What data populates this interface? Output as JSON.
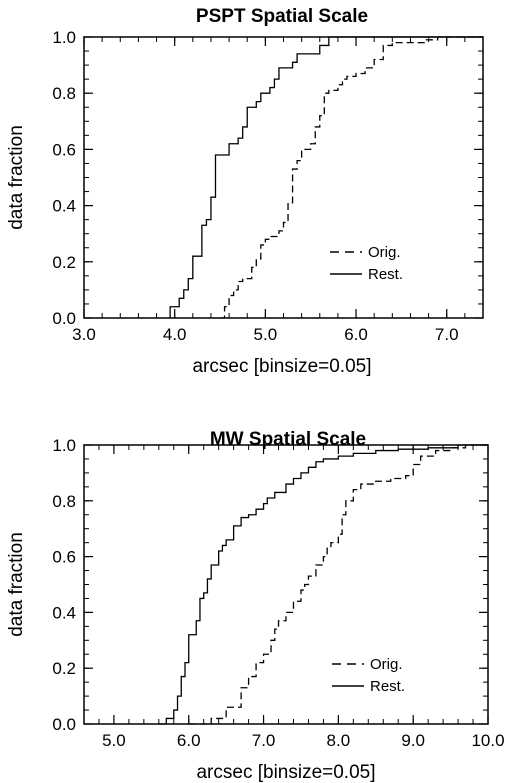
{
  "chart_data": [
    {
      "type": "line",
      "title": "PSPT Spatial Scale",
      "xlabel": "arcsec    [binsize=0.05]",
      "ylabel": "data fraction",
      "xlim": [
        3.0,
        7.4
      ],
      "ylim": [
        0.0,
        1.0
      ],
      "xticks": [
        "3.0",
        "4.0",
        "5.0",
        "6.0",
        "7.0"
      ],
      "yticks": [
        "0.0",
        "0.2",
        "0.4",
        "0.6",
        "0.8",
        "1.0"
      ],
      "legend": "center-right",
      "series": [
        {
          "name": "Orig.",
          "style": "dashed",
          "points": [
            [
              4.5,
              0.0
            ],
            [
              4.55,
              0.04
            ],
            [
              4.6,
              0.08
            ],
            [
              4.65,
              0.1
            ],
            [
              4.7,
              0.13
            ],
            [
              4.75,
              0.14
            ],
            [
              4.85,
              0.18
            ],
            [
              4.9,
              0.21
            ],
            [
              4.95,
              0.26
            ],
            [
              5.0,
              0.28
            ],
            [
              5.05,
              0.29
            ],
            [
              5.15,
              0.31
            ],
            [
              5.2,
              0.34
            ],
            [
              5.25,
              0.41
            ],
            [
              5.3,
              0.53
            ],
            [
              5.35,
              0.56
            ],
            [
              5.4,
              0.6
            ],
            [
              5.5,
              0.62
            ],
            [
              5.55,
              0.68
            ],
            [
              5.6,
              0.72
            ],
            [
              5.65,
              0.8
            ],
            [
              5.7,
              0.81
            ],
            [
              5.8,
              0.83
            ],
            [
              5.85,
              0.85
            ],
            [
              5.9,
              0.86
            ],
            [
              6.0,
              0.87
            ],
            [
              6.1,
              0.89
            ],
            [
              6.2,
              0.92
            ],
            [
              6.3,
              0.97
            ],
            [
              6.4,
              0.98
            ],
            [
              6.6,
              0.98
            ],
            [
              6.75,
              0.99
            ],
            [
              6.9,
              1.0
            ],
            [
              7.4,
              1.0
            ]
          ]
        },
        {
          "name": "Rest.",
          "style": "solid",
          "points": [
            [
              3.95,
              0.0
            ],
            [
              3.95,
              0.04
            ],
            [
              4.05,
              0.07
            ],
            [
              4.1,
              0.1
            ],
            [
              4.15,
              0.14
            ],
            [
              4.2,
              0.22
            ],
            [
              4.3,
              0.33
            ],
            [
              4.35,
              0.35
            ],
            [
              4.4,
              0.43
            ],
            [
              4.45,
              0.58
            ],
            [
              4.6,
              0.62
            ],
            [
              4.7,
              0.64
            ],
            [
              4.75,
              0.68
            ],
            [
              4.8,
              0.75
            ],
            [
              4.9,
              0.77
            ],
            [
              4.95,
              0.8
            ],
            [
              5.05,
              0.82
            ],
            [
              5.1,
              0.85
            ],
            [
              5.15,
              0.89
            ],
            [
              5.3,
              0.91
            ],
            [
              5.35,
              0.94
            ],
            [
              5.6,
              0.97
            ],
            [
              5.7,
              1.0
            ],
            [
              7.4,
              1.0
            ]
          ]
        }
      ]
    },
    {
      "type": "line",
      "title": "MW Spatial Scale",
      "xlabel": "arcsec    [binsize=0.05]",
      "ylabel": "data fraction",
      "xlim": [
        4.6,
        10.0
      ],
      "ylim": [
        0.0,
        1.0
      ],
      "xticks": [
        "5.0",
        "6.0",
        "7.0",
        "8.0",
        "9.0",
        "10.0"
      ],
      "yticks": [
        "0.0",
        "0.2",
        "0.4",
        "0.6",
        "0.8",
        "1.0"
      ],
      "legend": "bottom-right",
      "series": [
        {
          "name": "Orig.",
          "style": "dashed",
          "points": [
            [
              6.0,
              0.0
            ],
            [
              6.3,
              0.02
            ],
            [
              6.5,
              0.06
            ],
            [
              6.7,
              0.13
            ],
            [
              6.8,
              0.17
            ],
            [
              6.9,
              0.22
            ],
            [
              7.0,
              0.25
            ],
            [
              7.1,
              0.3
            ],
            [
              7.15,
              0.34
            ],
            [
              7.2,
              0.37
            ],
            [
              7.3,
              0.4
            ],
            [
              7.4,
              0.44
            ],
            [
              7.5,
              0.48
            ],
            [
              7.55,
              0.5
            ],
            [
              7.6,
              0.53
            ],
            [
              7.7,
              0.57
            ],
            [
              7.8,
              0.6
            ],
            [
              7.85,
              0.63
            ],
            [
              7.9,
              0.65
            ],
            [
              8.0,
              0.68
            ],
            [
              8.05,
              0.75
            ],
            [
              8.1,
              0.8
            ],
            [
              8.2,
              0.84
            ],
            [
              8.3,
              0.86
            ],
            [
              8.5,
              0.87
            ],
            [
              8.7,
              0.88
            ],
            [
              8.9,
              0.89
            ],
            [
              9.0,
              0.93
            ],
            [
              9.1,
              0.96
            ],
            [
              9.3,
              0.98
            ],
            [
              9.5,
              0.99
            ],
            [
              9.7,
              1.0
            ],
            [
              10.0,
              1.0
            ]
          ]
        },
        {
          "name": "Rest.",
          "style": "solid",
          "points": [
            [
              5.6,
              0.0
            ],
            [
              5.7,
              0.02
            ],
            [
              5.8,
              0.05
            ],
            [
              5.85,
              0.1
            ],
            [
              5.9,
              0.17
            ],
            [
              5.95,
              0.22
            ],
            [
              6.0,
              0.32
            ],
            [
              6.1,
              0.37
            ],
            [
              6.15,
              0.45
            ],
            [
              6.2,
              0.47
            ],
            [
              6.25,
              0.52
            ],
            [
              6.3,
              0.57
            ],
            [
              6.4,
              0.62
            ],
            [
              6.45,
              0.64
            ],
            [
              6.5,
              0.66
            ],
            [
              6.6,
              0.71
            ],
            [
              6.7,
              0.74
            ],
            [
              6.8,
              0.75
            ],
            [
              6.9,
              0.77
            ],
            [
              7.0,
              0.79
            ],
            [
              7.05,
              0.81
            ],
            [
              7.15,
              0.83
            ],
            [
              7.3,
              0.86
            ],
            [
              7.4,
              0.88
            ],
            [
              7.5,
              0.9
            ],
            [
              7.6,
              0.92
            ],
            [
              7.7,
              0.94
            ],
            [
              7.8,
              0.95
            ],
            [
              8.0,
              0.96
            ],
            [
              8.2,
              0.97
            ],
            [
              8.5,
              0.98
            ],
            [
              8.8,
              0.985
            ],
            [
              9.2,
              0.99
            ],
            [
              9.6,
              1.0
            ],
            [
              10.0,
              1.0
            ]
          ]
        }
      ]
    }
  ]
}
